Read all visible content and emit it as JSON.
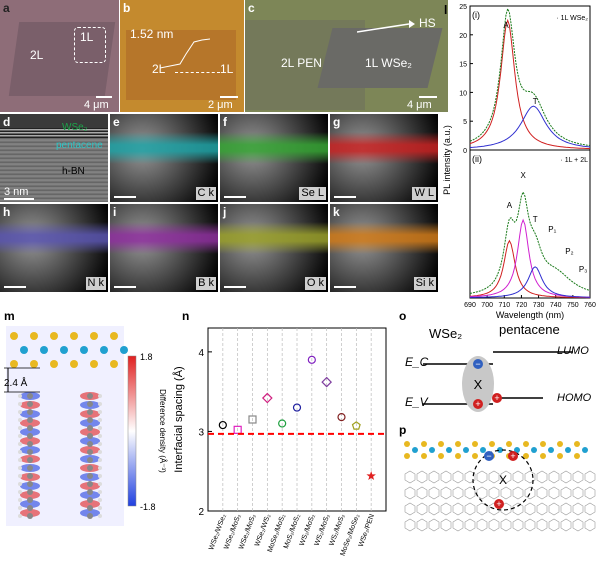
{
  "colors": {
    "optical_a": "#8e6d78",
    "optical_b": "#c48a2e",
    "optical_c": "#7d8657",
    "edx_C": "#1fa3a6",
    "edx_Se": "#36a534",
    "edx_W": "#c82222",
    "edx_N": "#5a55b0",
    "edx_B": "#8e2f9e",
    "edx_O": "#9aa02a",
    "edx_Si": "#d07a18",
    "pl_data": "#1a7a1a",
    "pl_A_fit": "#d02020",
    "pl_T_fit": "#3030d0",
    "pl_mid_fit": "#d020d0",
    "spacing_threshold": "#ff0000",
    "diff_pos": "#e02020",
    "diff_neg": "#2040e0"
  },
  "panel_a": {
    "label": "a",
    "region_2L": "2L",
    "region_1L": "1L",
    "scale": "4 μm"
  },
  "panel_b": {
    "label": "b",
    "height": "1.52 nm",
    "region_2L": "2L",
    "region_1L": "1L",
    "scale": "2 μm"
  },
  "panel_c": {
    "label": "c",
    "hs": "HS",
    "region_pen": "2L PEN",
    "region_wse2": "1L WSe₂",
    "scale": "4 μm"
  },
  "panel_d": {
    "label": "d",
    "wse2": "WSe₂",
    "pentacene": "pentacene",
    "hbn": "h-BN",
    "scale": "3 nm"
  },
  "edx_panels": [
    {
      "label": "e",
      "element": "C k",
      "color_key": "edx_C"
    },
    {
      "label": "f",
      "element": "Se L",
      "color_key": "edx_Se"
    },
    {
      "label": "g",
      "element": "W L",
      "color_key": "edx_W"
    },
    {
      "label": "h",
      "element": "N k",
      "color_key": "edx_N"
    },
    {
      "label": "i",
      "element": "B k",
      "color_key": "edx_B"
    },
    {
      "label": "j",
      "element": "O k",
      "color_key": "edx_O"
    },
    {
      "label": "k",
      "element": "Si k",
      "color_key": "edx_Si"
    }
  ],
  "panel_l": {
    "label": "l",
    "ylabel": "PL intensity (a.u.)",
    "xlabel": "Wavelength (nm)",
    "top": {
      "tag": "(i)",
      "legend": "1L WSe₂",
      "peaks": [
        "A",
        "T"
      ],
      "y_ticks": [
        "0",
        "5",
        "10",
        "15",
        "20",
        "25"
      ]
    },
    "bottom": {
      "tag": "(ii)",
      "legend": "1L + 2L",
      "peaks": [
        "A",
        "X",
        "T",
        "P₁",
        "P₂",
        "P₃"
      ]
    },
    "x_ticks": [
      "690",
      "700",
      "710",
      "720",
      "730",
      "740",
      "750",
      "760"
    ]
  },
  "panel_m": {
    "label": "m",
    "distance": "2.4 Å",
    "colorbar_label": "Difference density (Å⁻³)",
    "colorbar_max": "1.8",
    "colorbar_min": "-1.8"
  },
  "panel_n": {
    "label": "n"
  },
  "chart_data": {
    "type": "scatter",
    "ylabel": "Interfacial spacing (Å)",
    "ylim": [
      2,
      4.3
    ],
    "y_ticks": [
      2,
      3,
      4
    ],
    "categories": [
      "WSe₂/WSe₂",
      "WSe₂/MoS₂",
      "WSe₂/MoS₂",
      "WSe₂/WS₂",
      "MoSe₂/MoS₂",
      "MoS₂/MoS₂",
      "WS₂/MoS₂",
      "WS₂/MoS₂",
      "WS₂/MoS₂",
      "MoSe₂/MoSe₂",
      "WSe₂/PEN"
    ],
    "values": [
      3.08,
      3.02,
      3.15,
      3.42,
      3.1,
      3.3,
      3.9,
      3.62,
      3.18,
      3.07,
      2.44
    ],
    "markers": [
      "circle",
      "square",
      "square",
      "diamond",
      "circle",
      "circle",
      "circle",
      "diamond",
      "circle",
      "pentagon",
      "star"
    ],
    "marker_colors": [
      "#000000",
      "#e020c0",
      "#888888",
      "#d02080",
      "#20a040",
      "#2020a0",
      "#8020c0",
      "#8040a0",
      "#802020",
      "#a0a020",
      "#e02020"
    ],
    "threshold": 2.97
  },
  "panel_o": {
    "label": "o",
    "left": "WSe₂",
    "right": "pentacene",
    "ec": "E_C",
    "ev": "E_V",
    "lumo": "LUMO",
    "homo": "HOMO",
    "exciton": "X",
    "electron": "−",
    "hole": "+"
  },
  "panel_p": {
    "label": "p",
    "exciton": "X",
    "electron": "−",
    "hole": "+"
  }
}
